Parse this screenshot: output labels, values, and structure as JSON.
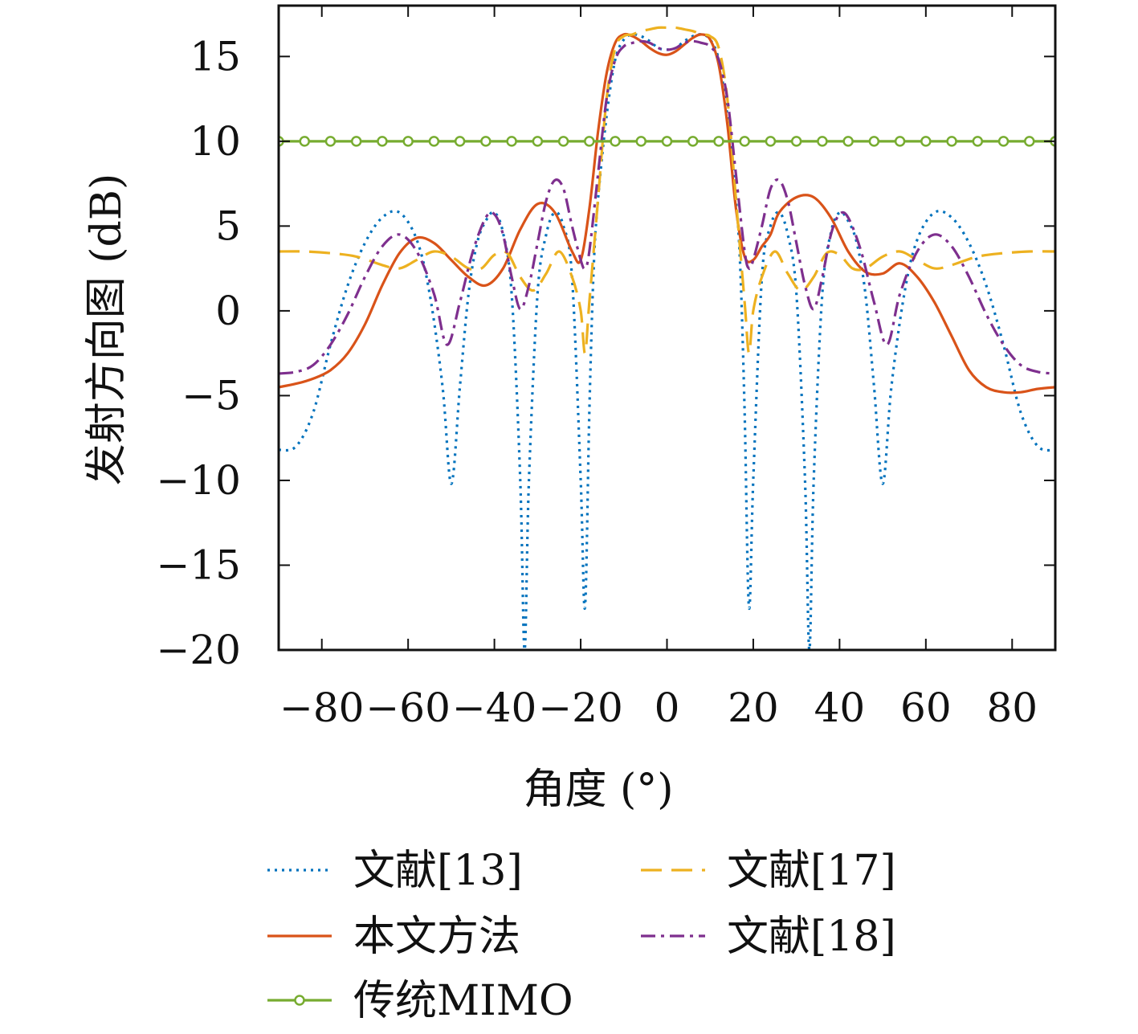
{
  "chart_data": {
    "type": "line",
    "xlabel": "角度 (°)",
    "ylabel": "发射方向图 (dB)",
    "xlim": [
      -90,
      90
    ],
    "ylim": [
      -20,
      18
    ],
    "xticks": [
      -80,
      -60,
      -40,
      -20,
      0,
      20,
      40,
      60,
      80
    ],
    "yticks": [
      -20,
      -15,
      -10,
      -5,
      0,
      5,
      10,
      15
    ],
    "xtick_labels": [
      "−80",
      "−60",
      "−40",
      "−20",
      "0",
      "20",
      "40",
      "60",
      "80"
    ],
    "ytick_labels": [
      "−20",
      "−15",
      "−10",
      "−5",
      "0",
      "5",
      "10",
      "15"
    ],
    "grid": false,
    "legend_position": "bottom",
    "series": [
      {
        "name": "文献[13]",
        "color": "#0072BD",
        "dash": "3,6",
        "x": [
          -90,
          -86,
          -82,
          -78,
          -74,
          -70,
          -66,
          -62,
          -58,
          -55,
          -52,
          -50,
          -48,
          -46,
          -44,
          -42,
          -40,
          -38,
          -36,
          -34,
          -33,
          -32,
          -30,
          -28,
          -26,
          -24,
          -22,
          -20,
          -19,
          -18,
          -17,
          -16,
          -14,
          -12,
          -10,
          -8,
          -6,
          -4,
          -2,
          0,
          2,
          4,
          6,
          8,
          10,
          12,
          14,
          16,
          17,
          18,
          19,
          20,
          22,
          24,
          26,
          28,
          30,
          32,
          33,
          34,
          36,
          38,
          40,
          42,
          44,
          46,
          48,
          50,
          52,
          55,
          58,
          62,
          66,
          70,
          74,
          78,
          82,
          86,
          90
        ],
        "y": [
          -8.2,
          -8.0,
          -6.0,
          -2.0,
          1.5,
          4.0,
          5.5,
          5.8,
          4.2,
          1.0,
          -4.5,
          -10.2,
          -4.5,
          1.0,
          4.0,
          5.3,
          5.8,
          4.6,
          1.0,
          -10.0,
          -20.0,
          -10.0,
          1.0,
          4.5,
          5.8,
          5.0,
          2.0,
          -10.0,
          -17.5,
          -6.0,
          2.5,
          6.5,
          11.5,
          14.8,
          16.0,
          16.3,
          16.2,
          15.9,
          15.5,
          15.4,
          15.5,
          15.9,
          16.2,
          16.3,
          16.0,
          14.8,
          11.5,
          6.5,
          2.5,
          -6.0,
          -17.5,
          -10.0,
          2.0,
          5.0,
          5.8,
          4.5,
          1.0,
          -10.0,
          -20.0,
          -10.0,
          1.0,
          4.6,
          5.8,
          5.3,
          4.0,
          1.0,
          -4.5,
          -10.2,
          -4.5,
          1.0,
          4.2,
          5.8,
          5.5,
          4.0,
          1.5,
          -2.0,
          -6.0,
          -8.0,
          -8.2
        ]
      },
      {
        "name": "本文方法",
        "color": "#D95319",
        "dash": "",
        "x": [
          -90,
          -86,
          -82,
          -78,
          -74,
          -70,
          -66,
          -62,
          -58,
          -54,
          -50,
          -46,
          -42,
          -38,
          -34,
          -30,
          -26,
          -22,
          -20,
          -18,
          -16,
          -14,
          -12,
          -10,
          -8,
          -6,
          -4,
          -2,
          0,
          2,
          4,
          6,
          8,
          10,
          12,
          14,
          16,
          18,
          20,
          22,
          24,
          26,
          30,
          34,
          38,
          42,
          46,
          50,
          54,
          58,
          62,
          66,
          70,
          74,
          78,
          82,
          86,
          90
        ],
        "y": [
          -4.5,
          -4.3,
          -4.0,
          -3.5,
          -2.5,
          -0.8,
          1.5,
          3.4,
          4.3,
          4.0,
          3.0,
          2.0,
          1.5,
          2.5,
          4.8,
          6.3,
          5.8,
          3.5,
          3.0,
          6.0,
          10.5,
          14.0,
          15.8,
          16.3,
          16.2,
          15.9,
          15.5,
          15.2,
          15.1,
          15.3,
          15.7,
          16.1,
          16.3,
          16.0,
          14.5,
          11.0,
          6.0,
          3.2,
          3.0,
          3.8,
          4.5,
          5.8,
          6.7,
          6.7,
          5.5,
          3.5,
          2.3,
          2.2,
          2.8,
          2.0,
          0.5,
          -1.5,
          -3.5,
          -4.5,
          -4.8,
          -4.8,
          -4.6,
          -4.5
        ]
      },
      {
        "name": "文献[17]",
        "color": "#EDB120",
        "dash": "26,12",
        "x": [
          -90,
          -84,
          -78,
          -72,
          -66,
          -62,
          -58,
          -54,
          -50,
          -46,
          -43,
          -40,
          -37,
          -34,
          -31,
          -28,
          -25,
          -22,
          -20,
          -19,
          -18,
          -16,
          -14,
          -12,
          -10,
          -8,
          -6,
          -4,
          -2,
          0,
          2,
          4,
          6,
          8,
          10,
          12,
          14,
          16,
          18,
          19,
          20,
          22,
          25,
          28,
          31,
          34,
          37,
          40,
          43,
          46,
          50,
          54,
          58,
          62,
          66,
          72,
          78,
          84,
          90
        ],
        "y": [
          3.5,
          3.5,
          3.4,
          3.2,
          2.7,
          2.5,
          3.0,
          3.5,
          3.2,
          2.5,
          2.5,
          3.3,
          3.4,
          2.0,
          1.2,
          2.2,
          3.5,
          2.0,
          0.0,
          -2.5,
          0.5,
          6.5,
          12.5,
          15.5,
          16.2,
          16.3,
          16.5,
          16.6,
          16.7,
          16.7,
          16.7,
          16.6,
          16.5,
          16.3,
          16.2,
          15.5,
          12.5,
          6.5,
          0.5,
          -2.5,
          0.0,
          2.0,
          3.5,
          2.2,
          1.2,
          2.0,
          3.4,
          3.3,
          2.5,
          2.5,
          3.2,
          3.5,
          3.0,
          2.5,
          2.7,
          3.2,
          3.4,
          3.5,
          3.5
        ]
      },
      {
        "name": "文献[18]",
        "color": "#7E2F8E",
        "dash": "18,7,4,7",
        "x": [
          -90,
          -86,
          -82,
          -78,
          -74,
          -70,
          -66,
          -62,
          -58,
          -54,
          -51,
          -48,
          -45,
          -42,
          -40,
          -38,
          -36,
          -34,
          -32,
          -30,
          -28,
          -26,
          -24,
          -22,
          -20,
          -19,
          -18,
          -16,
          -14,
          -12,
          -10,
          -8,
          -6,
          -4,
          -2,
          0,
          2,
          4,
          6,
          8,
          10,
          12,
          14,
          16,
          18,
          19,
          20,
          22,
          24,
          26,
          28,
          30,
          32,
          34,
          36,
          38,
          40,
          42,
          45,
          48,
          51,
          54,
          58,
          62,
          66,
          70,
          74,
          78,
          82,
          86,
          90
        ],
        "y": [
          -3.7,
          -3.6,
          -3.2,
          -2.0,
          -0.2,
          2.0,
          3.8,
          4.5,
          3.5,
          1.0,
          -2.0,
          0.5,
          3.5,
          5.5,
          5.7,
          4.5,
          2.0,
          0.1,
          1.5,
          4.0,
          6.5,
          7.7,
          7.2,
          5.0,
          3.0,
          2.5,
          3.5,
          8.0,
          12.5,
          14.8,
          15.6,
          15.8,
          15.9,
          15.8,
          15.5,
          15.4,
          15.5,
          15.8,
          15.9,
          15.8,
          15.6,
          14.8,
          12.5,
          8.0,
          3.5,
          2.5,
          3.0,
          5.0,
          7.2,
          7.7,
          6.5,
          4.0,
          1.5,
          0.1,
          2.0,
          4.5,
          5.7,
          5.5,
          3.5,
          0.5,
          -2.0,
          1.0,
          3.5,
          4.5,
          3.8,
          2.0,
          -0.2,
          -2.0,
          -3.2,
          -3.6,
          -3.7
        ]
      },
      {
        "name": "传统MIMO",
        "color": "#77AC30",
        "dash": "",
        "marker": "circle",
        "x": [
          -90,
          90
        ],
        "y": [
          10,
          10
        ],
        "marker_x": [
          -90,
          -84,
          -78,
          -72,
          -66,
          -60,
          -54,
          -48,
          -42,
          -36,
          -30,
          -24,
          -18,
          -12,
          -6,
          0,
          6,
          12,
          18,
          24,
          30,
          36,
          42,
          48,
          54,
          60,
          66,
          72,
          78,
          84,
          90
        ]
      }
    ]
  }
}
